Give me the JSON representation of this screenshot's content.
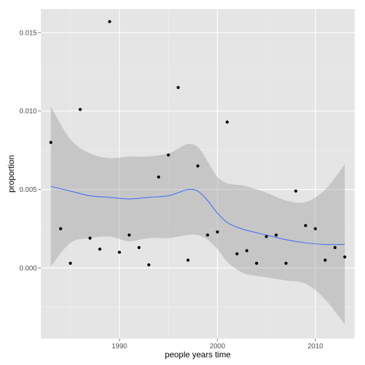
{
  "chart_data": {
    "type": "scatter",
    "title": "",
    "xlabel": "people years time",
    "ylabel": "proportion",
    "xlim": [
      1982,
      2014
    ],
    "ylim": [
      -0.0045,
      0.0165
    ],
    "x_ticks": [
      1990,
      2000,
      2010
    ],
    "x_tick_labels": [
      "1990",
      "2000",
      "2010"
    ],
    "y_ticks": [
      0.0,
      0.005,
      0.01,
      0.015
    ],
    "y_tick_labels": [
      "0.000",
      "0.005",
      "0.010",
      "0.015"
    ],
    "grid": true,
    "legend": "none",
    "colors": {
      "panel": "#e5e5e5",
      "grid_major": "#ffffff",
      "grid_minor": "#f2f2f2",
      "points": "#000000",
      "smooth_line": "#3366ff",
      "confidence_band": "#999999"
    },
    "points": [
      {
        "x": 1983,
        "y": 0.008
      },
      {
        "x": 1984,
        "y": 0.0025
      },
      {
        "x": 1985,
        "y": 0.0003
      },
      {
        "x": 1986,
        "y": 0.0101
      },
      {
        "x": 1987,
        "y": 0.0019
      },
      {
        "x": 1988,
        "y": 0.0012
      },
      {
        "x": 1989,
        "y": 0.0157
      },
      {
        "x": 1990,
        "y": 0.001
      },
      {
        "x": 1991,
        "y": 0.0021
      },
      {
        "x": 1992,
        "y": 0.0013
      },
      {
        "x": 1993,
        "y": 0.0002
      },
      {
        "x": 1994,
        "y": 0.0058
      },
      {
        "x": 1995,
        "y": 0.0072
      },
      {
        "x": 1996,
        "y": 0.0115
      },
      {
        "x": 1997,
        "y": 0.0005
      },
      {
        "x": 1998,
        "y": 0.0065
      },
      {
        "x": 1999,
        "y": 0.0021
      },
      {
        "x": 2000,
        "y": 0.0023
      },
      {
        "x": 2001,
        "y": 0.0093
      },
      {
        "x": 2002,
        "y": 0.0009
      },
      {
        "x": 2003,
        "y": 0.0011
      },
      {
        "x": 2004,
        "y": 0.0003
      },
      {
        "x": 2005,
        "y": 0.002
      },
      {
        "x": 2006,
        "y": 0.0021
      },
      {
        "x": 2007,
        "y": 0.0003
      },
      {
        "x": 2008,
        "y": 0.0049
      },
      {
        "x": 2009,
        "y": 0.0027
      },
      {
        "x": 2010,
        "y": 0.0025
      },
      {
        "x": 2011,
        "y": 0.0005
      },
      {
        "x": 2012,
        "y": 0.0013
      },
      {
        "x": 2013,
        "y": 0.0007
      }
    ],
    "smooth": {
      "method": "loess",
      "x": [
        1983,
        1985,
        1987,
        1989,
        1991,
        1993,
        1995,
        1996,
        1997,
        1998,
        1999,
        2000,
        2001,
        2002,
        2003,
        2005,
        2007,
        2009,
        2011,
        2013
      ],
      "y": [
        0.0052,
        0.0049,
        0.0046,
        0.0045,
        0.0044,
        0.0045,
        0.0046,
        0.0048,
        0.005,
        0.0049,
        0.0043,
        0.0035,
        0.0029,
        0.0026,
        0.0024,
        0.0021,
        0.0018,
        0.0016,
        0.0015,
        0.0015
      ],
      "upper": [
        0.0103,
        0.0082,
        0.0073,
        0.007,
        0.0071,
        0.0071,
        0.0073,
        0.0076,
        0.0079,
        0.0077,
        0.0068,
        0.0058,
        0.0054,
        0.0053,
        0.0052,
        0.0048,
        0.0043,
        0.0042,
        0.005,
        0.0066
      ],
      "lower": [
        0.0001,
        0.0016,
        0.0019,
        0.002,
        0.0017,
        0.0019,
        0.0019,
        0.002,
        0.0021,
        0.0021,
        0.0018,
        0.0012,
        0.0004,
        -0.0001,
        -0.0004,
        -0.0006,
        -0.0008,
        -0.001,
        -0.002,
        -0.0036
      ]
    }
  }
}
